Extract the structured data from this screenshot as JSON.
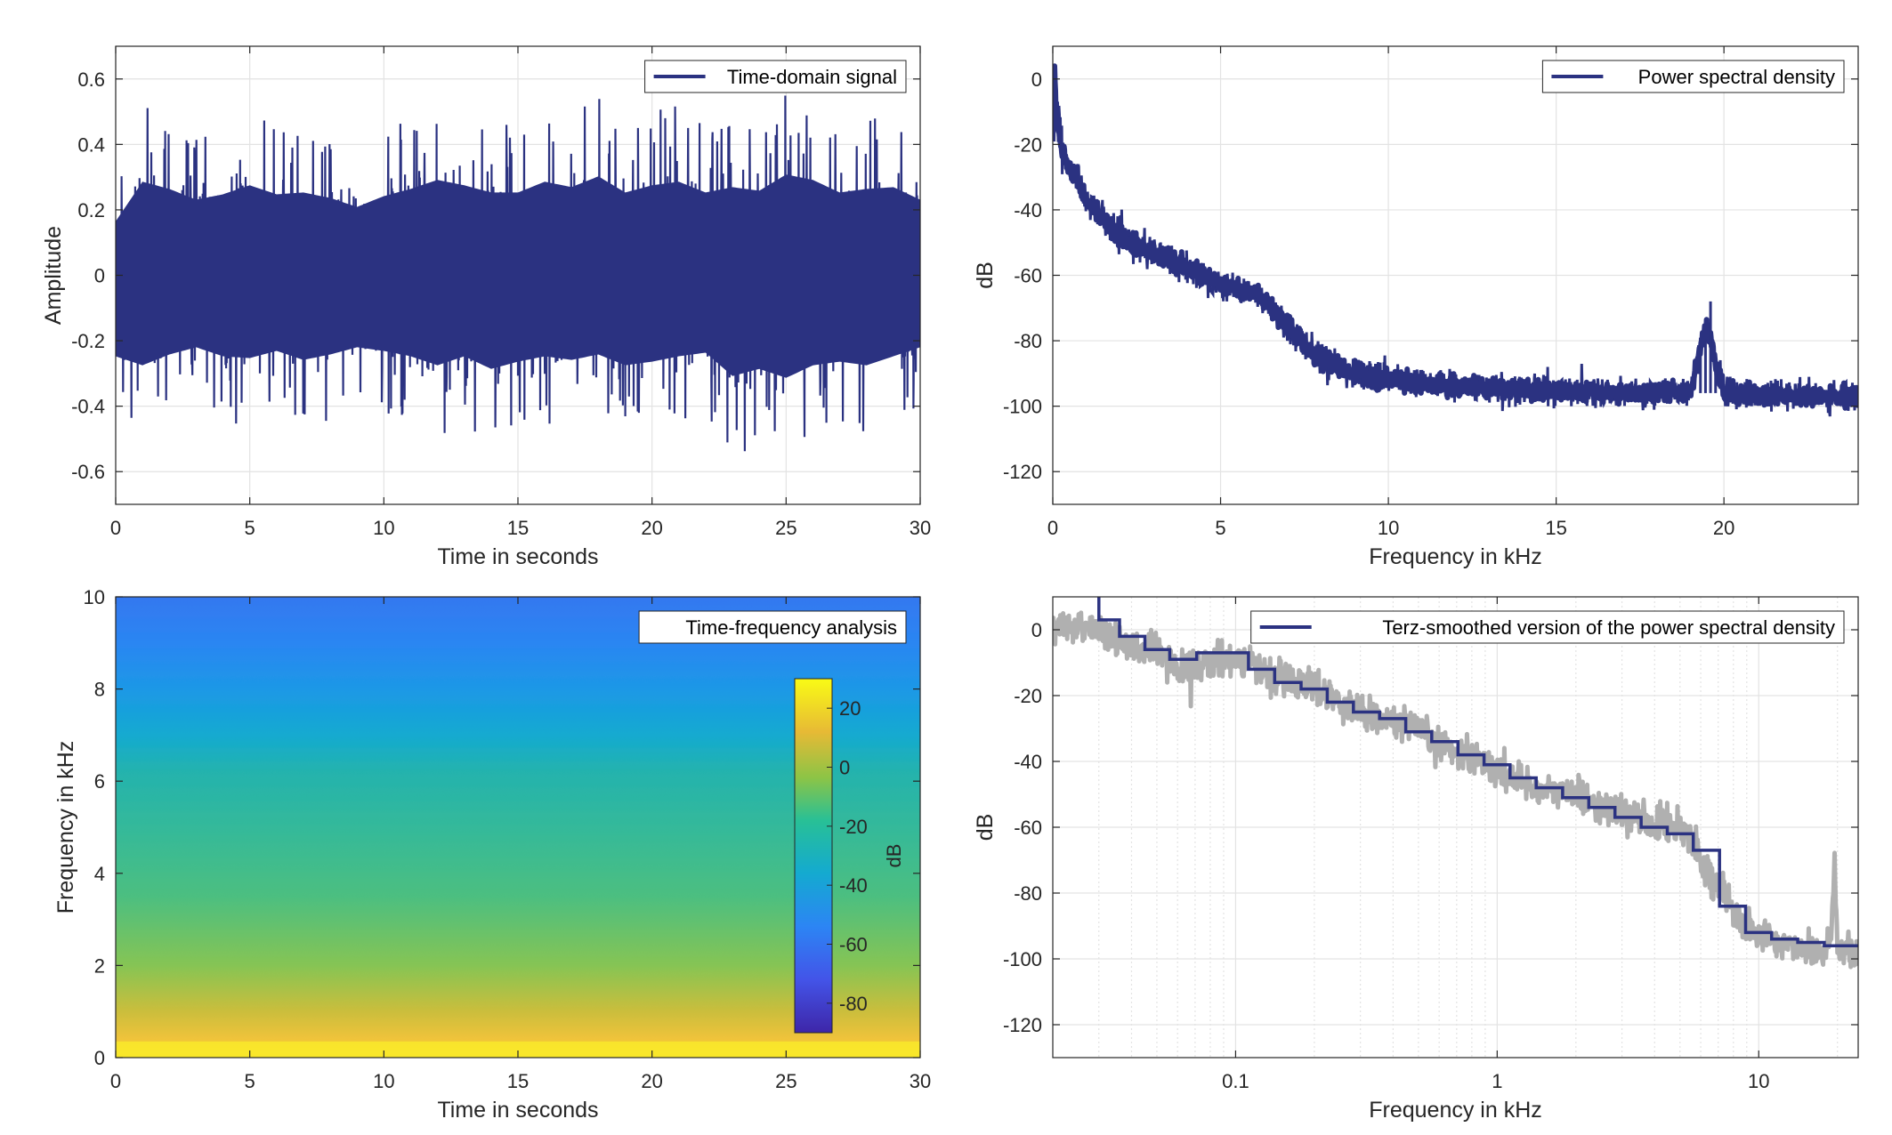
{
  "colors": {
    "signal": "#2b3281",
    "raw_psd": "#b0b0b0",
    "grid": "#e3e3e3",
    "axis": "#262626"
  },
  "chart_data": [
    {
      "id": "time-domain",
      "type": "line",
      "xlabel": "Time in seconds",
      "ylabel": "Amplitude",
      "legend": [
        "Time-domain signal"
      ],
      "legend_position": "top-right",
      "grid": true,
      "xlim": [
        0,
        30
      ],
      "ylim": [
        -0.7,
        0.7
      ],
      "xticks": [
        "0",
        "5",
        "10",
        "15",
        "20",
        "25",
        "30"
      ],
      "yticks": [
        "0.6",
        "0.4",
        "0.2",
        "0",
        "-0.2",
        "-0.4",
        "-0.6"
      ],
      "envelope": {
        "t": [
          0,
          1,
          2,
          3,
          4,
          5,
          6,
          7,
          8,
          9,
          10,
          11,
          12,
          13,
          14,
          15,
          16,
          17,
          18,
          19,
          20,
          21,
          22,
          23,
          24,
          25,
          26,
          27,
          28,
          29,
          30
        ],
        "upper": [
          0.3,
          0.52,
          0.48,
          0.42,
          0.45,
          0.5,
          0.45,
          0.46,
          0.43,
          0.38,
          0.44,
          0.48,
          0.53,
          0.5,
          0.46,
          0.46,
          0.52,
          0.49,
          0.55,
          0.46,
          0.5,
          0.52,
          0.46,
          0.49,
          0.47,
          0.56,
          0.53,
          0.46,
          0.48,
          0.49,
          0.42
        ],
        "lower": [
          -0.45,
          -0.5,
          -0.44,
          -0.4,
          -0.45,
          -0.46,
          -0.42,
          -0.47,
          -0.44,
          -0.4,
          -0.42,
          -0.45,
          -0.5,
          -0.45,
          -0.52,
          -0.48,
          -0.45,
          -0.47,
          -0.44,
          -0.5,
          -0.48,
          -0.45,
          -0.43,
          -0.56,
          -0.52,
          -0.57,
          -0.5,
          -0.48,
          -0.5,
          -0.45,
          -0.4
        ]
      }
    },
    {
      "id": "psd",
      "type": "line",
      "xlabel": "Frequency in kHz",
      "ylabel": "dB",
      "legend": [
        "Power spectral density"
      ],
      "legend_position": "top-right",
      "grid": true,
      "xlim": [
        0,
        24
      ],
      "ylim": [
        -130,
        10
      ],
      "xticks": [
        "0",
        "5",
        "10",
        "15",
        "20"
      ],
      "yticks": [
        "0",
        "-20",
        "-40",
        "-60",
        "-80",
        "-100",
        "-120"
      ],
      "series": [
        {
          "x": [
            0,
            0.05,
            0.1,
            0.2,
            0.4,
            0.7,
            1,
            1.5,
            2,
            2.5,
            3,
            3.5,
            4,
            4.5,
            5,
            5.5,
            6,
            6.5,
            7,
            7.5,
            8,
            8.5,
            9,
            10,
            11,
            12,
            13,
            14,
            15,
            16,
            17,
            18,
            19,
            19.3,
            19.5,
            19.7,
            20,
            21,
            22,
            23,
            24
          ],
          "y": [
            -18,
            5,
            -10,
            -18,
            -25,
            -30,
            -37,
            -43,
            -48,
            -51,
            -53,
            -55,
            -58,
            -60,
            -63,
            -64,
            -65,
            -70,
            -76,
            -81,
            -85,
            -88,
            -90,
            -92,
            -93,
            -94,
            -94.5,
            -95,
            -95,
            -95.5,
            -96,
            -96,
            -95,
            -82,
            -75,
            -85,
            -96,
            -96.5,
            -97,
            -97,
            -97
          ]
        }
      ]
    },
    {
      "id": "spectrogram",
      "type": "heatmap",
      "xlabel": "Time in seconds",
      "ylabel": "Frequency in kHz",
      "legend": [
        "Time-frequency analysis"
      ],
      "legend_position": "top-right",
      "xlim": [
        0,
        30
      ],
      "ylim": [
        0,
        10
      ],
      "xticks": [
        "0",
        "5",
        "10",
        "15",
        "20",
        "25",
        "30"
      ],
      "yticks": [
        "10",
        "8",
        "6",
        "4",
        "2",
        "0"
      ],
      "colorbar": {
        "label": "dB",
        "clim": [
          -90,
          30
        ],
        "ticks": [
          "20",
          "0",
          "-20",
          "-40",
          "-60",
          "-80"
        ]
      },
      "profile_freq_khz": [
        0,
        0.5,
        1,
        2,
        3,
        4,
        5,
        6,
        7,
        8,
        9,
        10
      ],
      "profile_db": [
        15,
        5,
        -5,
        -15,
        -20,
        -22,
        -25,
        -28,
        -40,
        -50,
        -55,
        -58
      ]
    },
    {
      "id": "terz-psd",
      "type": "line",
      "xlabel": "Frequency in kHz",
      "ylabel": "dB",
      "legend": [
        "Terz-smoothed version of the power spectral density"
      ],
      "legend_position": "top-right",
      "grid": true,
      "xscale": "log",
      "xlim": [
        0.02,
        24
      ],
      "ylim": [
        -130,
        10
      ],
      "xticks": [
        "0.1",
        "1",
        "10"
      ],
      "yticks": [
        "0",
        "-20",
        "-40",
        "-60",
        "-80",
        "-100",
        "-120"
      ],
      "series": [
        {
          "x": [
            0.02,
            0.025,
            0.03,
            0.04,
            0.05,
            0.06,
            0.08,
            0.1,
            0.125,
            0.15,
            0.2,
            0.25,
            0.3,
            0.4,
            0.5,
            0.6,
            0.8,
            1,
            1.25,
            1.5,
            2,
            2.5,
            3,
            4,
            5,
            5.5,
            6,
            7,
            8,
            9,
            10,
            12,
            15,
            18,
            19,
            19.5,
            20,
            24
          ],
          "y": [
            0,
            2,
            0,
            -6,
            -7,
            -12,
            -10,
            -8,
            -12,
            -15,
            -17,
            -22,
            -25,
            -28,
            -31,
            -35,
            -38,
            -43,
            -46,
            -49,
            -50,
            -54,
            -56,
            -59,
            -60,
            -62,
            -70,
            -78,
            -86,
            -90,
            -93,
            -95,
            -97,
            -98,
            -90,
            -70,
            -97,
            -99
          ]
        },
        {
          "x": [
            0.03,
            0.03,
            0.036,
            0.036,
            0.045,
            0.045,
            0.056,
            0.056,
            0.071,
            0.071,
            0.09,
            0.09,
            0.112,
            0.112,
            0.141,
            0.141,
            0.178,
            0.178,
            0.224,
            0.224,
            0.282,
            0.282,
            0.355,
            0.355,
            0.447,
            0.447,
            0.562,
            0.562,
            0.708,
            0.708,
            0.891,
            0.891,
            1.12,
            1.12,
            1.41,
            1.41,
            1.78,
            1.78,
            2.24,
            2.24,
            2.82,
            2.82,
            3.55,
            3.55,
            4.47,
            4.47,
            5.62,
            5.62,
            7.08,
            7.08,
            8.91,
            8.91,
            11.2,
            11.2,
            14.1,
            14.1,
            17.8,
            17.8,
            24
          ],
          "y": [
            10,
            3,
            3,
            -2,
            -2,
            -6,
            -6,
            -9,
            -9,
            -7,
            -7,
            -7,
            -7,
            -12,
            -12,
            -16,
            -16,
            -18,
            -18,
            -22,
            -22,
            -25,
            -25,
            -27,
            -27,
            -31,
            -31,
            -34,
            -34,
            -38,
            -38,
            -41,
            -41,
            -45,
            -45,
            -48,
            -48,
            -51,
            -51,
            -54,
            -54,
            -57,
            -57,
            -60,
            -60,
            -62,
            -62,
            -67,
            -67,
            -84,
            -84,
            -92,
            -92,
            -94,
            -94,
            -95,
            -95,
            -96,
            -96
          ]
        }
      ]
    }
  ]
}
